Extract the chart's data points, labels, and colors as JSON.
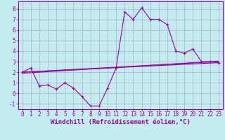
{
  "xlabel": "Windchill (Refroidissement éolien,°C)",
  "background_color": "#c2ecee",
  "line_color": "#9900aa",
  "grid_color": "#aaaacc",
  "xlim": [
    -0.5,
    23.5
  ],
  "ylim": [
    -1.5,
    8.7
  ],
  "yticks": [
    -1,
    0,
    1,
    2,
    3,
    4,
    5,
    6,
    7,
    8
  ],
  "xticks": [
    0,
    1,
    2,
    3,
    4,
    5,
    6,
    7,
    8,
    9,
    10,
    11,
    12,
    13,
    14,
    15,
    16,
    17,
    18,
    19,
    20,
    21,
    22,
    23
  ],
  "line1_x": [
    0,
    1,
    2,
    3,
    4,
    5,
    6,
    7,
    8,
    9,
    10,
    11,
    12,
    13,
    14,
    15,
    16,
    17,
    18,
    19,
    20,
    21,
    22,
    23
  ],
  "line1_y": [
    2.0,
    2.4,
    0.7,
    0.8,
    0.4,
    1.0,
    0.5,
    -0.3,
    -1.2,
    -1.2,
    0.5,
    2.4,
    7.7,
    7.0,
    8.1,
    7.0,
    7.0,
    6.5,
    4.0,
    3.8,
    4.2,
    3.0,
    3.0,
    2.9
  ],
  "line2_x": [
    0,
    23
  ],
  "line2_y": [
    2.0,
    3.0
  ],
  "line3_x": [
    0,
    23
  ],
  "line3_y": [
    2.0,
    2.9
  ],
  "line4_x": [
    0,
    23
  ],
  "line4_y": [
    1.9,
    3.05
  ],
  "tick_fontsize": 5.5,
  "xlabel_fontsize": 6.5,
  "figsize": [
    3.2,
    2.0
  ],
  "dpi": 100
}
